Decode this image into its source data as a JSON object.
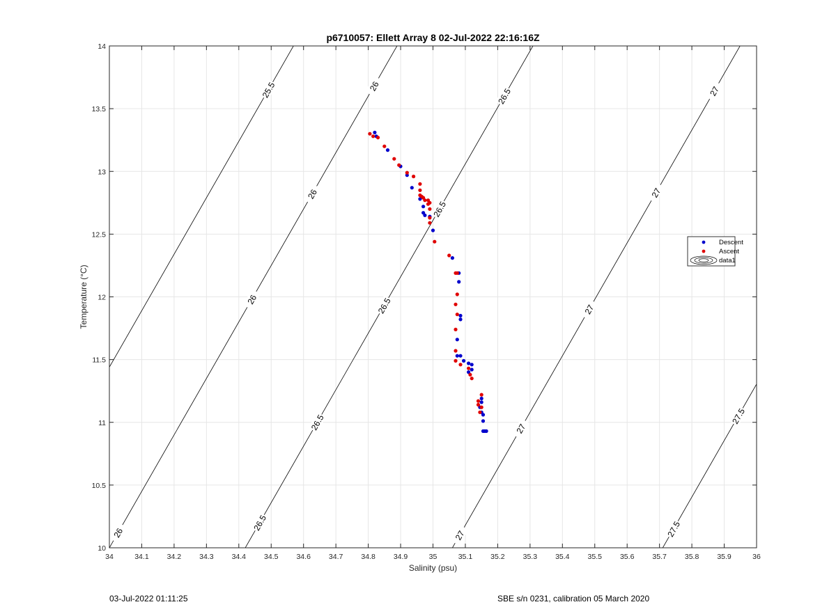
{
  "footer": {
    "timestamp": "03-Jul-2022 01:11:25",
    "calibration": "SBE s/n 0231, calibration 05 March 2020"
  },
  "chart_data": {
    "type": "scatter",
    "title": "p6710057: Ellett Array 8 02-Jul-2022 22:16:16Z",
    "xlabel": "Salinity (psu)",
    "ylabel": "Temperature (°C)",
    "xlim": [
      34,
      36
    ],
    "ylim": [
      10,
      14
    ],
    "x_ticks": [
      "34",
      "34.1",
      "34.2",
      "34.3",
      "34.4",
      "34.5",
      "34.6",
      "34.7",
      "34.8",
      "34.9",
      "35",
      "35.1",
      "35.2",
      "35.3",
      "35.4",
      "35.5",
      "35.6",
      "35.7",
      "35.8",
      "35.9",
      "36"
    ],
    "y_ticks": [
      "10",
      "10.5",
      "11",
      "11.5",
      "12",
      "12.5",
      "13",
      "13.5",
      "14"
    ],
    "grid": true,
    "legend_position": "right",
    "legend": [
      "Descent",
      "Ascent",
      "data1"
    ],
    "series": [
      {
        "name": "Descent",
        "color": "#0000cc",
        "points": [
          [
            34.82,
            13.31
          ],
          [
            34.825,
            13.28
          ],
          [
            34.86,
            13.17
          ],
          [
            34.9,
            13.04
          ],
          [
            34.92,
            12.97
          ],
          [
            34.935,
            12.87
          ],
          [
            34.96,
            12.78
          ],
          [
            34.97,
            12.72
          ],
          [
            34.97,
            12.67
          ],
          [
            34.975,
            12.65
          ],
          [
            34.99,
            12.64
          ],
          [
            35.0,
            12.53
          ],
          [
            35.08,
            12.19
          ],
          [
            35.08,
            12.12
          ],
          [
            35.085,
            11.85
          ],
          [
            35.085,
            11.82
          ],
          [
            35.075,
            11.66
          ],
          [
            35.075,
            11.53
          ],
          [
            35.085,
            11.53
          ],
          [
            35.095,
            11.49
          ],
          [
            35.11,
            11.47
          ],
          [
            35.12,
            11.46
          ],
          [
            35.12,
            11.42
          ],
          [
            35.11,
            11.4
          ],
          [
            35.15,
            11.19
          ],
          [
            35.15,
            11.16
          ],
          [
            35.145,
            11.12
          ],
          [
            35.15,
            11.08
          ],
          [
            35.155,
            11.06
          ],
          [
            35.155,
            11.01
          ],
          [
            35.155,
            10.93
          ],
          [
            35.16,
            10.93
          ],
          [
            35.165,
            10.93
          ],
          [
            35.06,
            12.31
          ]
        ]
      },
      {
        "name": "Ascent",
        "color": "#e00000",
        "points": [
          [
            34.805,
            13.3
          ],
          [
            34.815,
            13.28
          ],
          [
            34.83,
            13.27
          ],
          [
            34.85,
            13.2
          ],
          [
            34.88,
            13.1
          ],
          [
            34.895,
            13.05
          ],
          [
            34.92,
            12.99
          ],
          [
            34.94,
            12.96
          ],
          [
            34.96,
            12.9
          ],
          [
            34.96,
            12.85
          ],
          [
            34.96,
            12.81
          ],
          [
            34.965,
            12.8
          ],
          [
            34.97,
            12.79
          ],
          [
            34.975,
            12.77
          ],
          [
            34.985,
            12.77
          ],
          [
            34.99,
            12.75
          ],
          [
            34.985,
            12.74
          ],
          [
            34.99,
            12.7
          ],
          [
            34.99,
            12.63
          ],
          [
            34.99,
            12.59
          ],
          [
            35.005,
            12.44
          ],
          [
            35.05,
            12.33
          ],
          [
            35.07,
            12.19
          ],
          [
            35.075,
            12.19
          ],
          [
            35.075,
            12.02
          ],
          [
            35.07,
            11.94
          ],
          [
            35.075,
            11.86
          ],
          [
            35.07,
            11.74
          ],
          [
            35.07,
            11.57
          ],
          [
            35.07,
            11.49
          ],
          [
            35.085,
            11.46
          ],
          [
            35.11,
            11.43
          ],
          [
            35.115,
            11.38
          ],
          [
            35.12,
            11.35
          ],
          [
            35.15,
            11.22
          ],
          [
            35.14,
            11.17
          ],
          [
            35.14,
            11.14
          ],
          [
            35.15,
            11.12
          ],
          [
            35.145,
            11.08
          ]
        ]
      }
    ],
    "contours": [
      {
        "level": "25.5",
        "labels": [
          "25.5"
        ]
      },
      {
        "level": "26",
        "labels": [
          "26",
          "26",
          "26",
          "26"
        ]
      },
      {
        "level": "26.5",
        "labels": [
          "26.5",
          "26.5",
          "26.5",
          "26.5",
          "26.5"
        ]
      },
      {
        "level": "27",
        "labels": [
          "27",
          "27",
          "27",
          "27",
          "27"
        ]
      },
      {
        "level": "27.5",
        "labels": [
          "27.5",
          "27.5"
        ]
      }
    ]
  }
}
